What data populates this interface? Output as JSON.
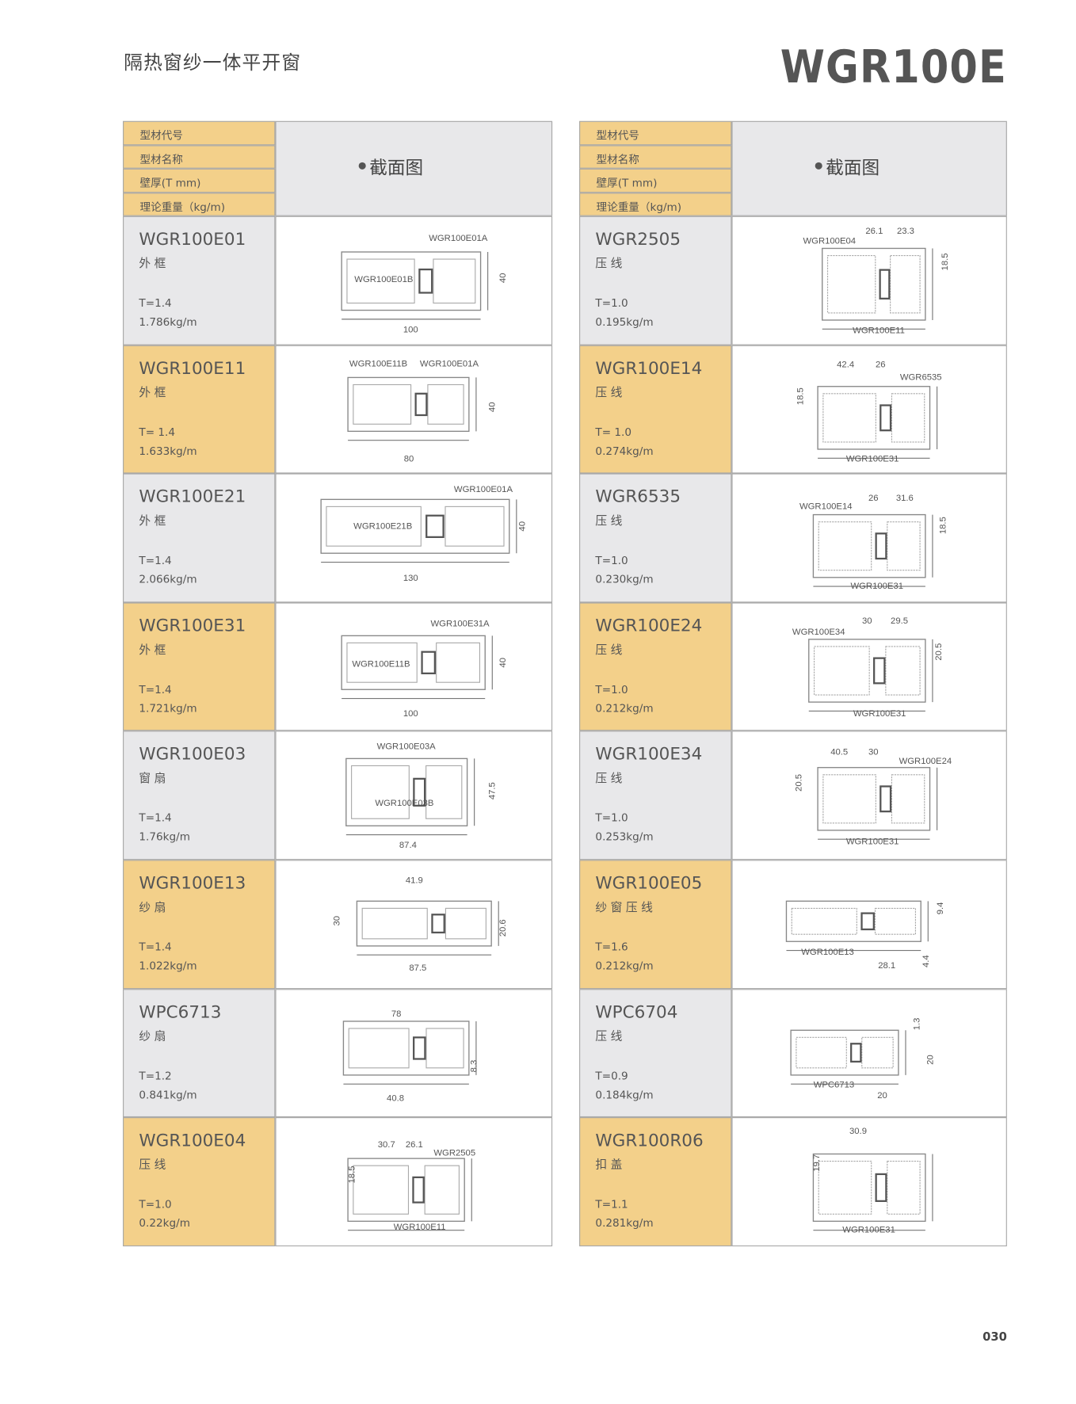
{
  "header": {
    "subtitle": "隔热窗纱一体平开窗",
    "model": "WGR100E"
  },
  "page_number": "030",
  "tables": [
    {
      "column_labels": [
        "型材代号",
        "型材名称",
        "壁厚(T mm)",
        "理论重量（kg/m)"
      ],
      "diagram_heading": "截面图",
      "rows": [
        {
          "code": "WGR100E01",
          "name": "外框",
          "thickness": "T=1.4",
          "weight": "1.786kg/m",
          "labels": [
            "WGR100E01A",
            "WGR100E01B",
            "40",
            "100"
          ]
        },
        {
          "code": "WGR100E11",
          "name": "外框",
          "thickness": "T= 1.4",
          "weight": "1.633kg/m",
          "labels": [
            "WGR100E11B",
            "WGR100E01A",
            "40",
            "80"
          ]
        },
        {
          "code": "WGR100E21",
          "name": "外框",
          "thickness": "T=1.4",
          "weight": "2.066kg/m",
          "labels": [
            "WGR100E01A",
            "WGR100E21B",
            "40",
            "130"
          ]
        },
        {
          "code": "WGR100E31",
          "name": "外框",
          "thickness": "T=1.4",
          "weight": "1.721kg/m",
          "labels": [
            "WGR100E31A",
            "WGR100E11B",
            "40",
            "100"
          ]
        },
        {
          "code": "WGR100E03",
          "name": "窗扇",
          "thickness": "T=1.4",
          "weight": "1.76kg/m",
          "labels": [
            "WGR100E03A",
            "WGR100E03B",
            "47.5",
            "87.4"
          ]
        },
        {
          "code": "WGR100E13",
          "name": "纱扇",
          "thickness": "T=1.4",
          "weight": "1.022kg/m",
          "labels": [
            "41.9",
            "30",
            "20.6",
            "87.5"
          ]
        },
        {
          "code": "WPC6713",
          "name": "纱扇",
          "thickness": "T=1.2",
          "weight": "0.841kg/m",
          "labels": [
            "78",
            "8.3",
            "40.8"
          ]
        },
        {
          "code": "WGR100E04",
          "name": "压线",
          "thickness": "T=1.0",
          "weight": "0.22kg/m",
          "labels": [
            "30.7",
            "26.1",
            "WGR2505",
            "18.5",
            "WGR100E11"
          ]
        }
      ]
    },
    {
      "column_labels": [
        "型材代号",
        "型材名称",
        "壁厚(T mm)",
        "理论重量（kg/m)"
      ],
      "diagram_heading": "截面图",
      "rows": [
        {
          "code": "WGR2505",
          "name": "压线",
          "thickness": "T=1.0",
          "weight": "0.195kg/m",
          "labels": [
            "WGR100E04",
            "26.1",
            "23.3",
            "18.5",
            "WGR100E11"
          ]
        },
        {
          "code": "WGR100E14",
          "name": "压线",
          "thickness": "T= 1.0",
          "weight": "0.274kg/m",
          "labels": [
            "42.4",
            "26",
            "WGR6535",
            "18.5",
            "WGR100E31"
          ]
        },
        {
          "code": "WGR6535",
          "name": "压线",
          "thickness": "T=1.0",
          "weight": "0.230kg/m",
          "labels": [
            "WGR100E14",
            "26",
            "31.6",
            "18.5",
            "WGR100E31"
          ]
        },
        {
          "code": "WGR100E24",
          "name": "压线",
          "thickness": "T=1.0",
          "weight": "0.212kg/m",
          "labels": [
            "WGR100E34",
            "30",
            "29.5",
            "20.5",
            "WGR100E31"
          ]
        },
        {
          "code": "WGR100E34",
          "name": "压线",
          "thickness": "T=1.0",
          "weight": "0.253kg/m",
          "labels": [
            "40.5",
            "30",
            "WGR100E24",
            "20.5",
            "WGR100E31"
          ]
        },
        {
          "code": "WGR100E05",
          "name": "纱窗压线",
          "thickness": "T=1.6",
          "weight": "0.212kg/m",
          "labels": [
            "9.4",
            "WGR100E13",
            "28.1",
            "4.4"
          ]
        },
        {
          "code": "WPC6704",
          "name": "压线",
          "thickness": "T=0.9",
          "weight": "0.184kg/m",
          "labels": [
            "1.3",
            "20",
            "WPC6713",
            "20"
          ]
        },
        {
          "code": "WGR100R06",
          "name": "扣盖",
          "thickness": "T=1.1",
          "weight": "0.281kg/m",
          "labels": [
            "30.9",
            "19.7",
            "WGR100E31"
          ]
        }
      ]
    }
  ]
}
